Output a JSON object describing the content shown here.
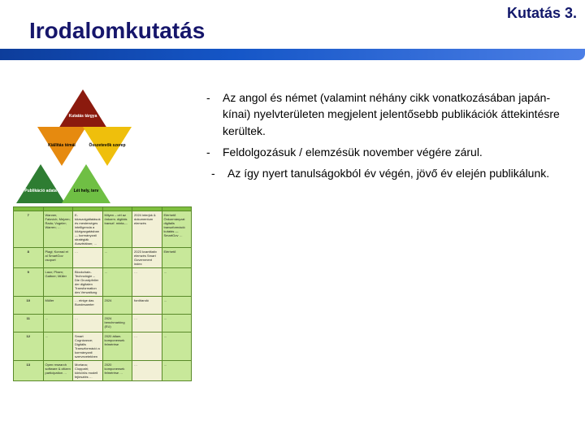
{
  "corner": {
    "label": "Kutatás 3."
  },
  "title": "Irodalomkutatás",
  "triangles": {
    "t1": "Kutatás tárgya",
    "t2": "Kiállítás témái",
    "t3": "Összetevők szerep",
    "t4": "Publikáció adata",
    "t5": "Lét hely, terv"
  },
  "bullets": [
    "Az angol és német (valamint néhány cikk vonatkozásában japán-kínai) nyelvterületen megjelent jelentősebb publikációk áttekintésre kerültek.",
    "Feldolgozásuk / elemzésük november végére zárul.",
    " Az így nyert tanulságokból év végén, jövő év elején publikálunk."
  ],
  "table": {
    "headers": [
      "",
      "",
      "",
      "",
      "",
      ""
    ],
    "rows": [
      {
        "idx": "7",
        "cells": [
          "Wanner, Falovich; Mejzen; Radu; Vogeler; Warren; …",
          "E-közszolgáltatások és mesterséges intelligencia a közigazgatásban — kormányzati stratégiák Ausztriában; …",
          "Milyen – cél az önkorm. digitáis transzf. minta-...",
          "2024 interjúk & dokumentum elemzés",
          "Elérhető Önkormányzat digitalis transzformáció kutatás — SmartGov …"
        ]
      },
      {
        "idx": "8",
        "cells": [
          "Plagi; Konrad et al SmartGov csoport",
          "…",
          "…",
          "2023 kvantitatív elemzés Smart Government index",
          "Elérhető"
        ]
      },
      {
        "idx": "9",
        "cells": [
          "Laux; Pham; Gattner; Müller",
          "Blockchain-Technológie – Die Grundpfeiler der digitalen Transformation des Verwaltung",
          "…",
          "…",
          "…"
        ]
      },
      {
        "idx": "10",
        "cells": [
          "Müller",
          "… einige das Bundesamter",
          "2024",
          "fordítandó",
          "…"
        ]
      },
      {
        "idx": "11",
        "cells": [
          "…",
          "…",
          "2024 benchmarking (EU)",
          "…",
          "…"
        ]
      },
      {
        "idx": "12",
        "cells": [
          "…",
          "Smart Cognizance; Digitális Transzformáció a kormányzati szervezetekben",
          "2020 átlam. komponensek felmérése",
          "…",
          "…"
        ]
      },
      {
        "idx": "13",
        "cells": [
          "Open research software & citizen participation …",
          "Mortana; Cioppatri; körkörös modell fejlesztés …",
          "2020 komponensek felmérése …",
          "…",
          "…"
        ]
      }
    ]
  },
  "colors": {
    "brand": "#12186b",
    "banner_from": "#0d3d9b",
    "banner_to": "#4c7fe6",
    "tri_dark_red": "#8b1a0e",
    "tri_orange": "#e68a0f",
    "tri_yellow": "#efbf0c",
    "tri_green_dk": "#2e7d32",
    "tri_green_lt": "#6fbf44",
    "table_header": "#7fbf3f",
    "table_border": "#5a8a2a",
    "table_lime": "#c8e89a",
    "table_cream": "#f2f0d6"
  }
}
